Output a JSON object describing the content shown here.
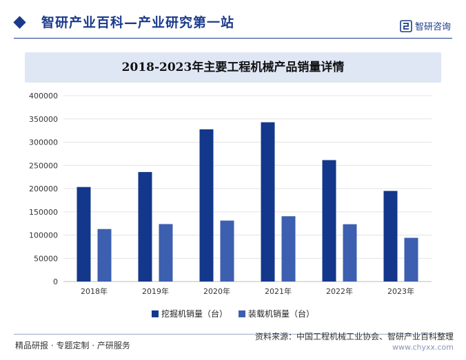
{
  "header": {
    "site_title": "智研产业百科—产业研究第一站",
    "brand_name": "智研咨询"
  },
  "colors": {
    "accent": "#1a3a8c",
    "series1": "#13378a",
    "series2": "#3d5fb0",
    "title_band": "#dfe6f4"
  },
  "chart_data": {
    "type": "bar",
    "title": "2018-2023年主要工程机械产品销量详情",
    "categories": [
      "2018年",
      "2019年",
      "2020年",
      "2021年",
      "2022年",
      "2023年"
    ],
    "series": [
      {
        "name": "挖掘机销量（台）",
        "values": [
          203420,
          235693,
          327605,
          342784,
          261346,
          195018
        ]
      },
      {
        "name": "装载机销量（台）",
        "values": [
          113000,
          123672,
          131176,
          140509,
          123355,
          94070
        ]
      }
    ],
    "ylim": [
      0,
      400000
    ],
    "yticks": [
      0,
      50000,
      100000,
      150000,
      200000,
      250000,
      300000,
      350000,
      400000
    ],
    "grid": true,
    "legend_position": "bottom"
  },
  "footer": {
    "left_text": "精品研报 · 专题定制 · 产研服务",
    "source": "资料来源：中国工程机械工业协会、智研产业百科整理",
    "url": "www.chyxx.com"
  }
}
